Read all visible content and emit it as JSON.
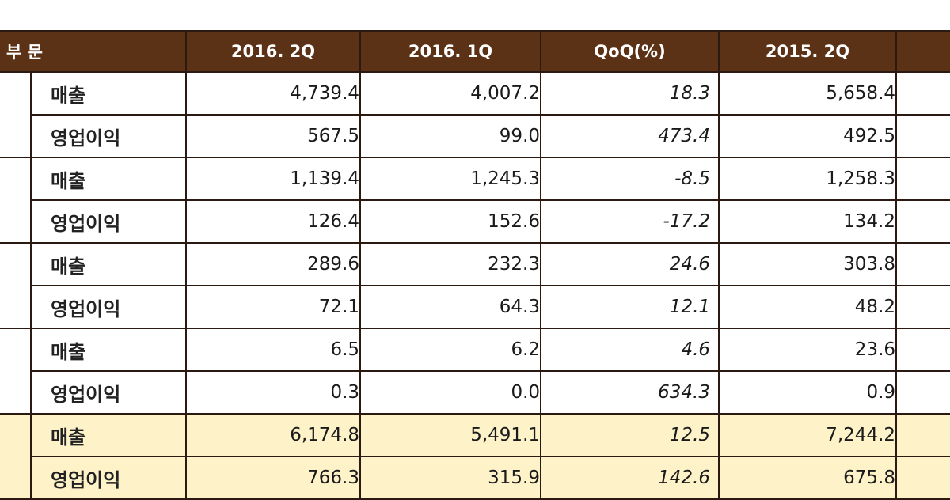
{
  "header": {
    "segment": "부 문",
    "cols": [
      "2016. 2Q",
      "2016. 1Q",
      "QoQ(%)",
      "2015. 2Q",
      ""
    ]
  },
  "rows": [
    {
      "label": "매출",
      "q2_2016": "4,739.4",
      "q1_2016": "4,007.2",
      "qoq": "18.3",
      "q2_2015": "5,658.4"
    },
    {
      "label": "영업이익",
      "q2_2016": "567.5",
      "q1_2016": "99.0",
      "qoq": "473.4",
      "q2_2015": "492.5"
    },
    {
      "label": "매출",
      "q2_2016": "1,139.4",
      "q1_2016": "1,245.3",
      "qoq": "-8.5",
      "q2_2015": "1,258.3"
    },
    {
      "label": "영업이익",
      "q2_2016": "126.4",
      "q1_2016": "152.6",
      "qoq": "-17.2",
      "q2_2015": "134.2"
    },
    {
      "label": "매출",
      "q2_2016": "289.6",
      "q1_2016": "232.3",
      "qoq": "24.6",
      "q2_2015": "303.8"
    },
    {
      "label": "영업이익",
      "q2_2016": "72.1",
      "q1_2016": "64.3",
      "qoq": "12.1",
      "q2_2015": "48.2"
    },
    {
      "label": "매출",
      "q2_2016": "6.5",
      "q1_2016": "6.2",
      "qoq": "4.6",
      "q2_2015": "23.6"
    },
    {
      "label": "영업이익",
      "q2_2016": "0.3",
      "q1_2016": "0.0",
      "qoq": "634.3",
      "q2_2015": "0.9"
    },
    {
      "label": "매출",
      "q2_2016": "6,174.8",
      "q1_2016": "5,491.1",
      "qoq": "12.5",
      "q2_2015": "7,244.2"
    },
    {
      "label": "영업이익",
      "q2_2016": "766.3",
      "q1_2016": "315.9",
      "qoq": "142.6",
      "q2_2015": "675.8"
    }
  ],
  "colors": {
    "header_bg": "#5c3216",
    "header_text": "#ffffff",
    "total_bg": "#fdf2c8",
    "border": "#2a1a12"
  }
}
